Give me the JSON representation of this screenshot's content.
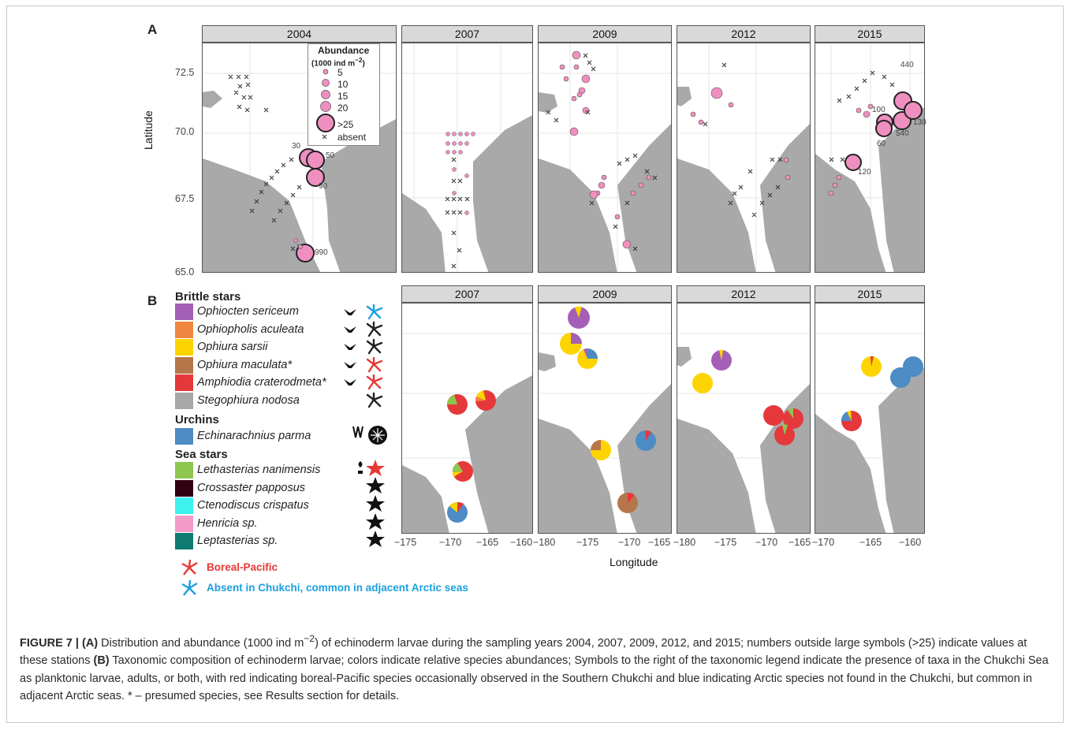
{
  "panel_a": {
    "letter": "A",
    "ylabel": "Latitude",
    "y_ticks": [
      "72.5",
      "70.0",
      "67.5",
      "65.0"
    ],
    "years": [
      "2004",
      "2007",
      "2009",
      "2012",
      "2015"
    ],
    "legend": {
      "title": "Abundance",
      "unit_prefix": "(1000 ind m",
      "unit_sup": "−2",
      "unit_suffix": ")",
      "sizes": [
        "5",
        "10",
        "15",
        "20",
        ">25"
      ],
      "absent": "absent"
    },
    "labels_2004": [
      "30",
      "50",
      "90",
      "990"
    ],
    "labels_2015": [
      "440",
      "100",
      "130",
      "540",
      "60",
      "120"
    ]
  },
  "panel_b": {
    "letter": "B",
    "years": [
      "2007",
      "2009",
      "2012",
      "2015"
    ],
    "xlabel": "Longitude",
    "x_ticks": [
      [
        "−175",
        "−170",
        "−165",
        "−160"
      ],
      [
        "−180",
        "−175",
        "−170",
        "−165"
      ],
      [
        "−180",
        "−175",
        "−170",
        "−165"
      ],
      [
        "−170",
        "−165",
        "−160"
      ]
    ],
    "legend": {
      "brittle_title": "Brittle stars",
      "brittle": [
        {
          "name": "Ophiocten sericeum",
          "color": "#a45fb6"
        },
        {
          "name": "Ophiopholis aculeata",
          "color": "#f0863f"
        },
        {
          "name": "Ophiura sarsii",
          "color": "#fdd400"
        },
        {
          "name": "Ophiura maculata*",
          "color": "#b5764a"
        },
        {
          "name": "Amphiodia craterodmeta*",
          "color": "#e5383b"
        },
        {
          "name": "Stegophiura nodosa",
          "color": "#a8a8a8"
        }
      ],
      "urchin_title": "Urchins",
      "urchins": [
        {
          "name": "Echinarachnius parma",
          "color": "#4d8cc4"
        }
      ],
      "seastar_title": "Sea stars",
      "seastars": [
        {
          "name": "Lethasterias nanimensis",
          "color": "#8dc750"
        },
        {
          "name": "Crossaster papposus",
          "color": "#300012"
        },
        {
          "name": "Ctenodiscus crispatus",
          "color": "#3ef0ee"
        },
        {
          "name": "Henricia sp.",
          "color": "#f49ac8"
        },
        {
          "name": "Leptasterias sp.",
          "color": "#0e7a72"
        }
      ],
      "note_red": "Boreal-Pacific",
      "note_blue": "Absent in Chukchi, common in adjacent Arctic seas"
    }
  },
  "colors": {
    "land": "#a9a9a9",
    "pink": "#ef8fc0",
    "red": "#e53935",
    "blue": "#1ba0e0"
  },
  "caption": {
    "head": "FIGURE 7 | (A)",
    "p1": " Distribution and abundance (1000 ind m",
    "sup": "−2",
    "p2": ") of echinoderm larvae during the sampling years 2004, 2007, 2009, 2012, and 2015; numbers outside large symbols (>25) indicate values at these stations ",
    "b": "(B)",
    "p3": " Taxonomic composition of echinoderm larvae; colors indicate relative species abundances; Symbols to the right of the taxonomic legend indicate the presence of taxa in the Chukchi Sea as planktonic larvae, adults, or both, with red indicating boreal-Pacific species occasionally observed in the Southern Chukchi and blue indicating Arctic species not found in the Chukchi, but common in adjacent Arctic seas. * – presumed species, see Results section for details."
  }
}
